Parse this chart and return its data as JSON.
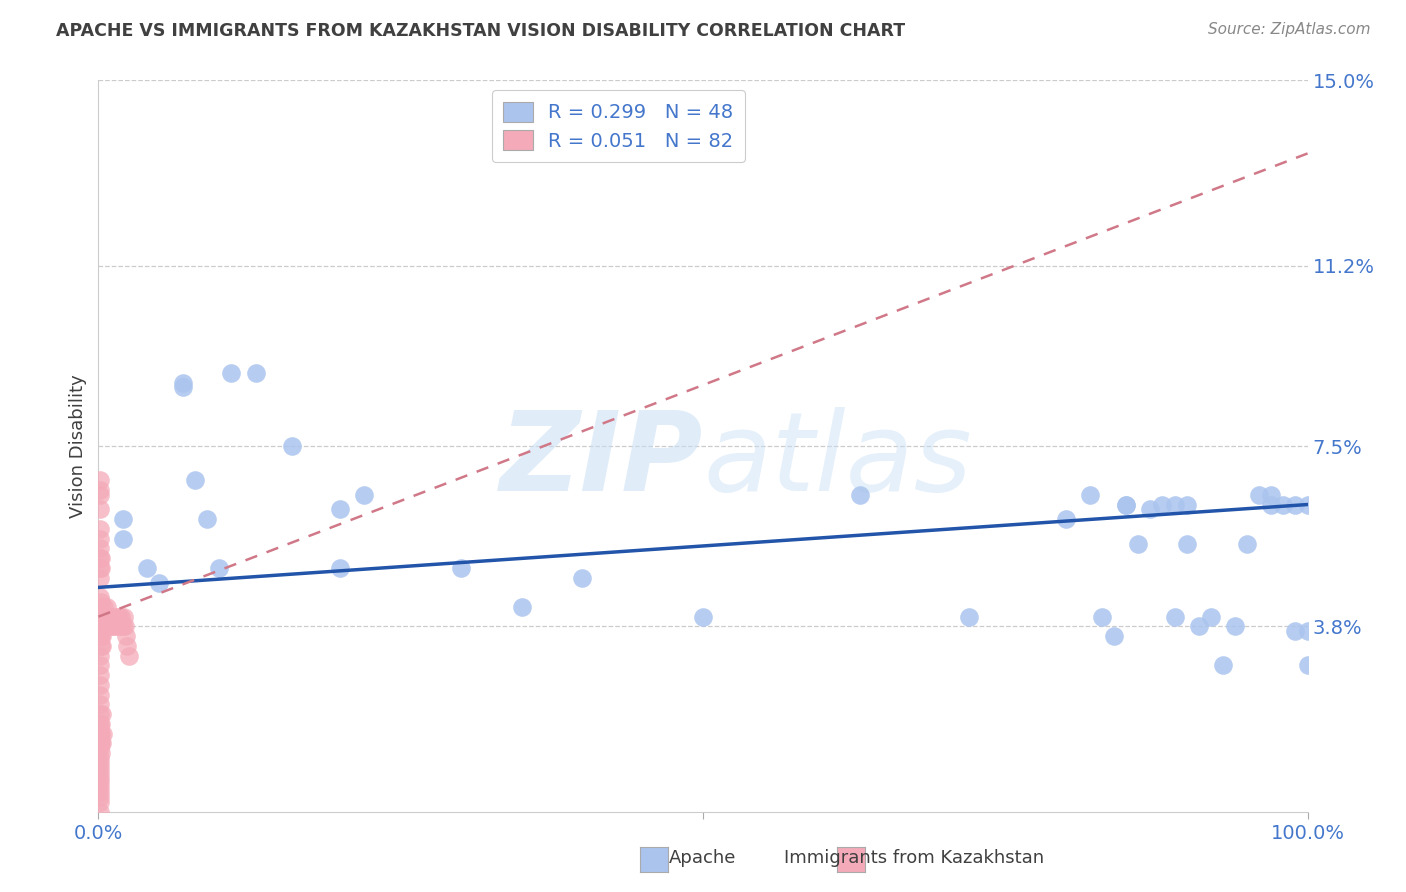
{
  "title": "APACHE VS IMMIGRANTS FROM KAZAKHSTAN VISION DISABILITY CORRELATION CHART",
  "source": "Source: ZipAtlas.com",
  "ylabel": "Vision Disability",
  "xlim": [
    0,
    1.0
  ],
  "ylim": [
    0,
    0.15
  ],
  "ytick_vals": [
    0.038,
    0.075,
    0.112,
    0.15
  ],
  "ytick_labels": [
    "3.8%",
    "7.5%",
    "11.2%",
    "15.0%"
  ],
  "watermark": "ZIPatlas",
  "legend_label1": "Apache",
  "legend_label2": "Immigrants from Kazakhstan",
  "r1": "0.299",
  "n1": "48",
  "r2": "0.051",
  "n2": "82",
  "apache_color": "#aac4ee",
  "kazakhstan_color": "#f4aab8",
  "trendline1_color": "#2255aa",
  "trendline2_color": "#d07888",
  "background_color": "#ffffff",
  "grid_color": "#cccccc",
  "title_color": "#404040",
  "tick_color": "#4477cc",
  "blue_x": [
    0.02,
    0.02,
    0.04,
    0.05,
    0.07,
    0.07,
    0.08,
    0.09,
    0.1,
    0.11,
    0.13,
    0.16,
    0.2,
    0.2,
    0.22,
    0.3,
    0.35,
    0.4,
    0.5,
    0.63,
    0.72,
    0.8,
    0.82,
    0.83,
    0.84,
    0.85,
    0.85,
    0.86,
    0.87,
    0.88,
    0.89,
    0.89,
    0.9,
    0.9,
    0.91,
    0.92,
    0.93,
    0.94,
    0.95,
    0.96,
    0.97,
    0.97,
    0.98,
    0.99,
    0.99,
    1.0,
    1.0,
    1.0
  ],
  "blue_y": [
    0.056,
    0.06,
    0.05,
    0.047,
    0.088,
    0.087,
    0.068,
    0.06,
    0.05,
    0.09,
    0.09,
    0.075,
    0.062,
    0.05,
    0.065,
    0.05,
    0.042,
    0.048,
    0.04,
    0.065,
    0.04,
    0.06,
    0.065,
    0.04,
    0.036,
    0.063,
    0.063,
    0.055,
    0.062,
    0.063,
    0.063,
    0.04,
    0.063,
    0.055,
    0.038,
    0.04,
    0.03,
    0.038,
    0.055,
    0.065,
    0.065,
    0.063,
    0.063,
    0.063,
    0.037,
    0.063,
    0.037,
    0.03
  ],
  "pink_x": [
    0.001,
    0.001,
    0.001,
    0.001,
    0.001,
    0.001,
    0.002,
    0.002,
    0.002,
    0.002,
    0.002,
    0.003,
    0.003,
    0.003,
    0.004,
    0.004,
    0.005,
    0.005,
    0.005,
    0.006,
    0.006,
    0.007,
    0.008,
    0.008,
    0.009,
    0.01,
    0.011,
    0.012,
    0.013,
    0.014,
    0.015,
    0.016,
    0.017,
    0.018,
    0.019,
    0.02,
    0.021,
    0.022,
    0.023,
    0.024,
    0.025,
    0.001,
    0.001,
    0.001,
    0.001,
    0.001,
    0.001,
    0.001,
    0.001,
    0.001,
    0.002,
    0.002,
    0.001,
    0.001,
    0.001,
    0.001,
    0.001,
    0.001,
    0.001,
    0.001,
    0.001,
    0.002,
    0.002,
    0.002,
    0.003,
    0.001,
    0.002,
    0.003,
    0.004,
    0.001,
    0.001,
    0.001,
    0.001,
    0.001,
    0.001,
    0.001,
    0.001,
    0.001,
    0.001,
    0.001,
    0.001,
    0.001
  ],
  "pink_y": [
    0.048,
    0.044,
    0.042,
    0.038,
    0.036,
    0.032,
    0.043,
    0.04,
    0.038,
    0.036,
    0.034,
    0.038,
    0.036,
    0.034,
    0.04,
    0.038,
    0.042,
    0.04,
    0.038,
    0.04,
    0.038,
    0.042,
    0.04,
    0.038,
    0.04,
    0.038,
    0.04,
    0.038,
    0.04,
    0.038,
    0.04,
    0.038,
    0.04,
    0.038,
    0.04,
    0.038,
    0.04,
    0.038,
    0.036,
    0.034,
    0.032,
    0.058,
    0.056,
    0.054,
    0.052,
    0.05,
    0.065,
    0.062,
    0.068,
    0.066,
    0.05,
    0.052,
    0.014,
    0.016,
    0.018,
    0.02,
    0.022,
    0.024,
    0.026,
    0.028,
    0.03,
    0.014,
    0.016,
    0.018,
    0.02,
    0.01,
    0.012,
    0.014,
    0.016,
    0.006,
    0.008,
    0.004,
    0.002,
    0.0,
    0.003,
    0.005,
    0.007,
    0.009,
    0.011,
    0.013,
    0.015,
    0.017
  ],
  "trendline1_x0": 0.0,
  "trendline1_y0": 0.046,
  "trendline1_x1": 1.0,
  "trendline1_y1": 0.063,
  "trendline2_x0": 0.0,
  "trendline2_y0": 0.04,
  "trendline2_x1": 1.0,
  "trendline2_y1": 0.135
}
